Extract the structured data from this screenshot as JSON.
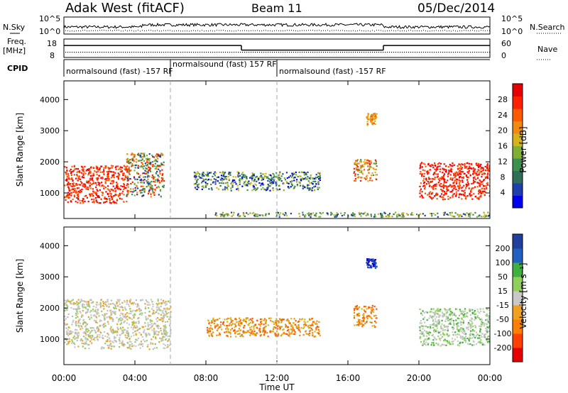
{
  "header": {
    "radar": "Adak West (fitACF)",
    "beam": "Beam 11",
    "date": "05/Dec/2014"
  },
  "top_panels": {
    "nsky_label": "N.Sky",
    "nsearch_label": "N.Search",
    "freq_label_1": "Freq.",
    "freq_label_2": "[MHz]",
    "nave_label": "Nave",
    "cpid_label": "CPID",
    "noise_ticks": [
      "10^5",
      "10^0"
    ],
    "freq_ticks": [
      "18",
      "8"
    ],
    "nave_ticks": [
      "60",
      "0"
    ],
    "cpid_segments": [
      {
        "start_h": 0.0,
        "end_h": 6.0,
        "text": "normalsound (fast) -157 RF"
      },
      {
        "start_h": 6.0,
        "end_h": 12.0,
        "text": "normalsound (fast) 157 RF"
      },
      {
        "start_h": 12.0,
        "end_h": 24.0,
        "text": "normalsound (fast) -157 RF"
      }
    ],
    "freq_steps": [
      {
        "start_h": 0.0,
        "end_h": 10.0,
        "mhz": 14.5
      },
      {
        "start_h": 10.0,
        "end_h": 18.0,
        "mhz": 12.0
      },
      {
        "start_h": 18.0,
        "end_h": 24.0,
        "mhz": 14.5
      }
    ]
  },
  "chart_data": [
    {
      "type": "heatmap",
      "variable": "Power",
      "ylabel": "Slant Range [km]",
      "ylim": [
        180,
        4600
      ],
      "yticks": [
        "1000",
        "2000",
        "3000",
        "4000"
      ],
      "xlim_h": [
        0,
        24
      ],
      "colorbar": {
        "label": "Power [dB]",
        "ticks": [
          "4",
          "8",
          "12",
          "16",
          "20",
          "24",
          "28"
        ]
      },
      "regions": [
        {
          "t0": 0.0,
          "t1": 3.6,
          "r0": 700,
          "r1": 1900,
          "level": "red"
        },
        {
          "t0": 3.5,
          "t1": 5.6,
          "r0": 900,
          "r1": 2300,
          "level": "mixed"
        },
        {
          "t0": 7.3,
          "t1": 14.4,
          "r0": 1100,
          "r1": 1700,
          "level": "blue-green"
        },
        {
          "t0": 16.3,
          "t1": 17.6,
          "r0": 1400,
          "r1": 2100,
          "level": "orange-red"
        },
        {
          "t0": 17.0,
          "t1": 17.6,
          "r0": 3200,
          "r1": 3600,
          "level": "orange"
        },
        {
          "t0": 20.0,
          "t1": 24.0,
          "r0": 800,
          "r1": 2000,
          "level": "red"
        },
        {
          "t0": 8.5,
          "t1": 24.0,
          "r0": 250,
          "r1": 400,
          "level": "ground-scatter"
        }
      ]
    },
    {
      "type": "heatmap",
      "variable": "Velocity",
      "ylabel": "Slant Range [km]",
      "xlabel": "Time UT",
      "ylim": [
        180,
        4600
      ],
      "yticks": [
        "1000",
        "2000",
        "3000",
        "4000"
      ],
      "xticks": [
        "00:00",
        "04:00",
        "08:00",
        "12:00",
        "16:00",
        "20:00",
        "00:00"
      ],
      "xlim_h": [
        0,
        24
      ],
      "colorbar": {
        "label": "Velocity [m s⁻¹]",
        "ticks": [
          "200",
          "100",
          "50",
          "15",
          "-15",
          "-50",
          "-100",
          "-200"
        ]
      },
      "regions": [
        {
          "t0": 0.0,
          "t1": 6.0,
          "r0": 700,
          "r1": 2300,
          "level": "grey"
        },
        {
          "t0": 8.0,
          "t1": 14.4,
          "r0": 1100,
          "r1": 1700,
          "level": "orange"
        },
        {
          "t0": 16.3,
          "t1": 17.6,
          "r0": 1400,
          "r1": 2100,
          "level": "orange"
        },
        {
          "t0": 17.0,
          "t1": 17.6,
          "r0": 3300,
          "r1": 3600,
          "level": "blue"
        },
        {
          "t0": 20.0,
          "t1": 24.0,
          "r0": 800,
          "r1": 2000,
          "level": "grey-green"
        }
      ]
    }
  ]
}
